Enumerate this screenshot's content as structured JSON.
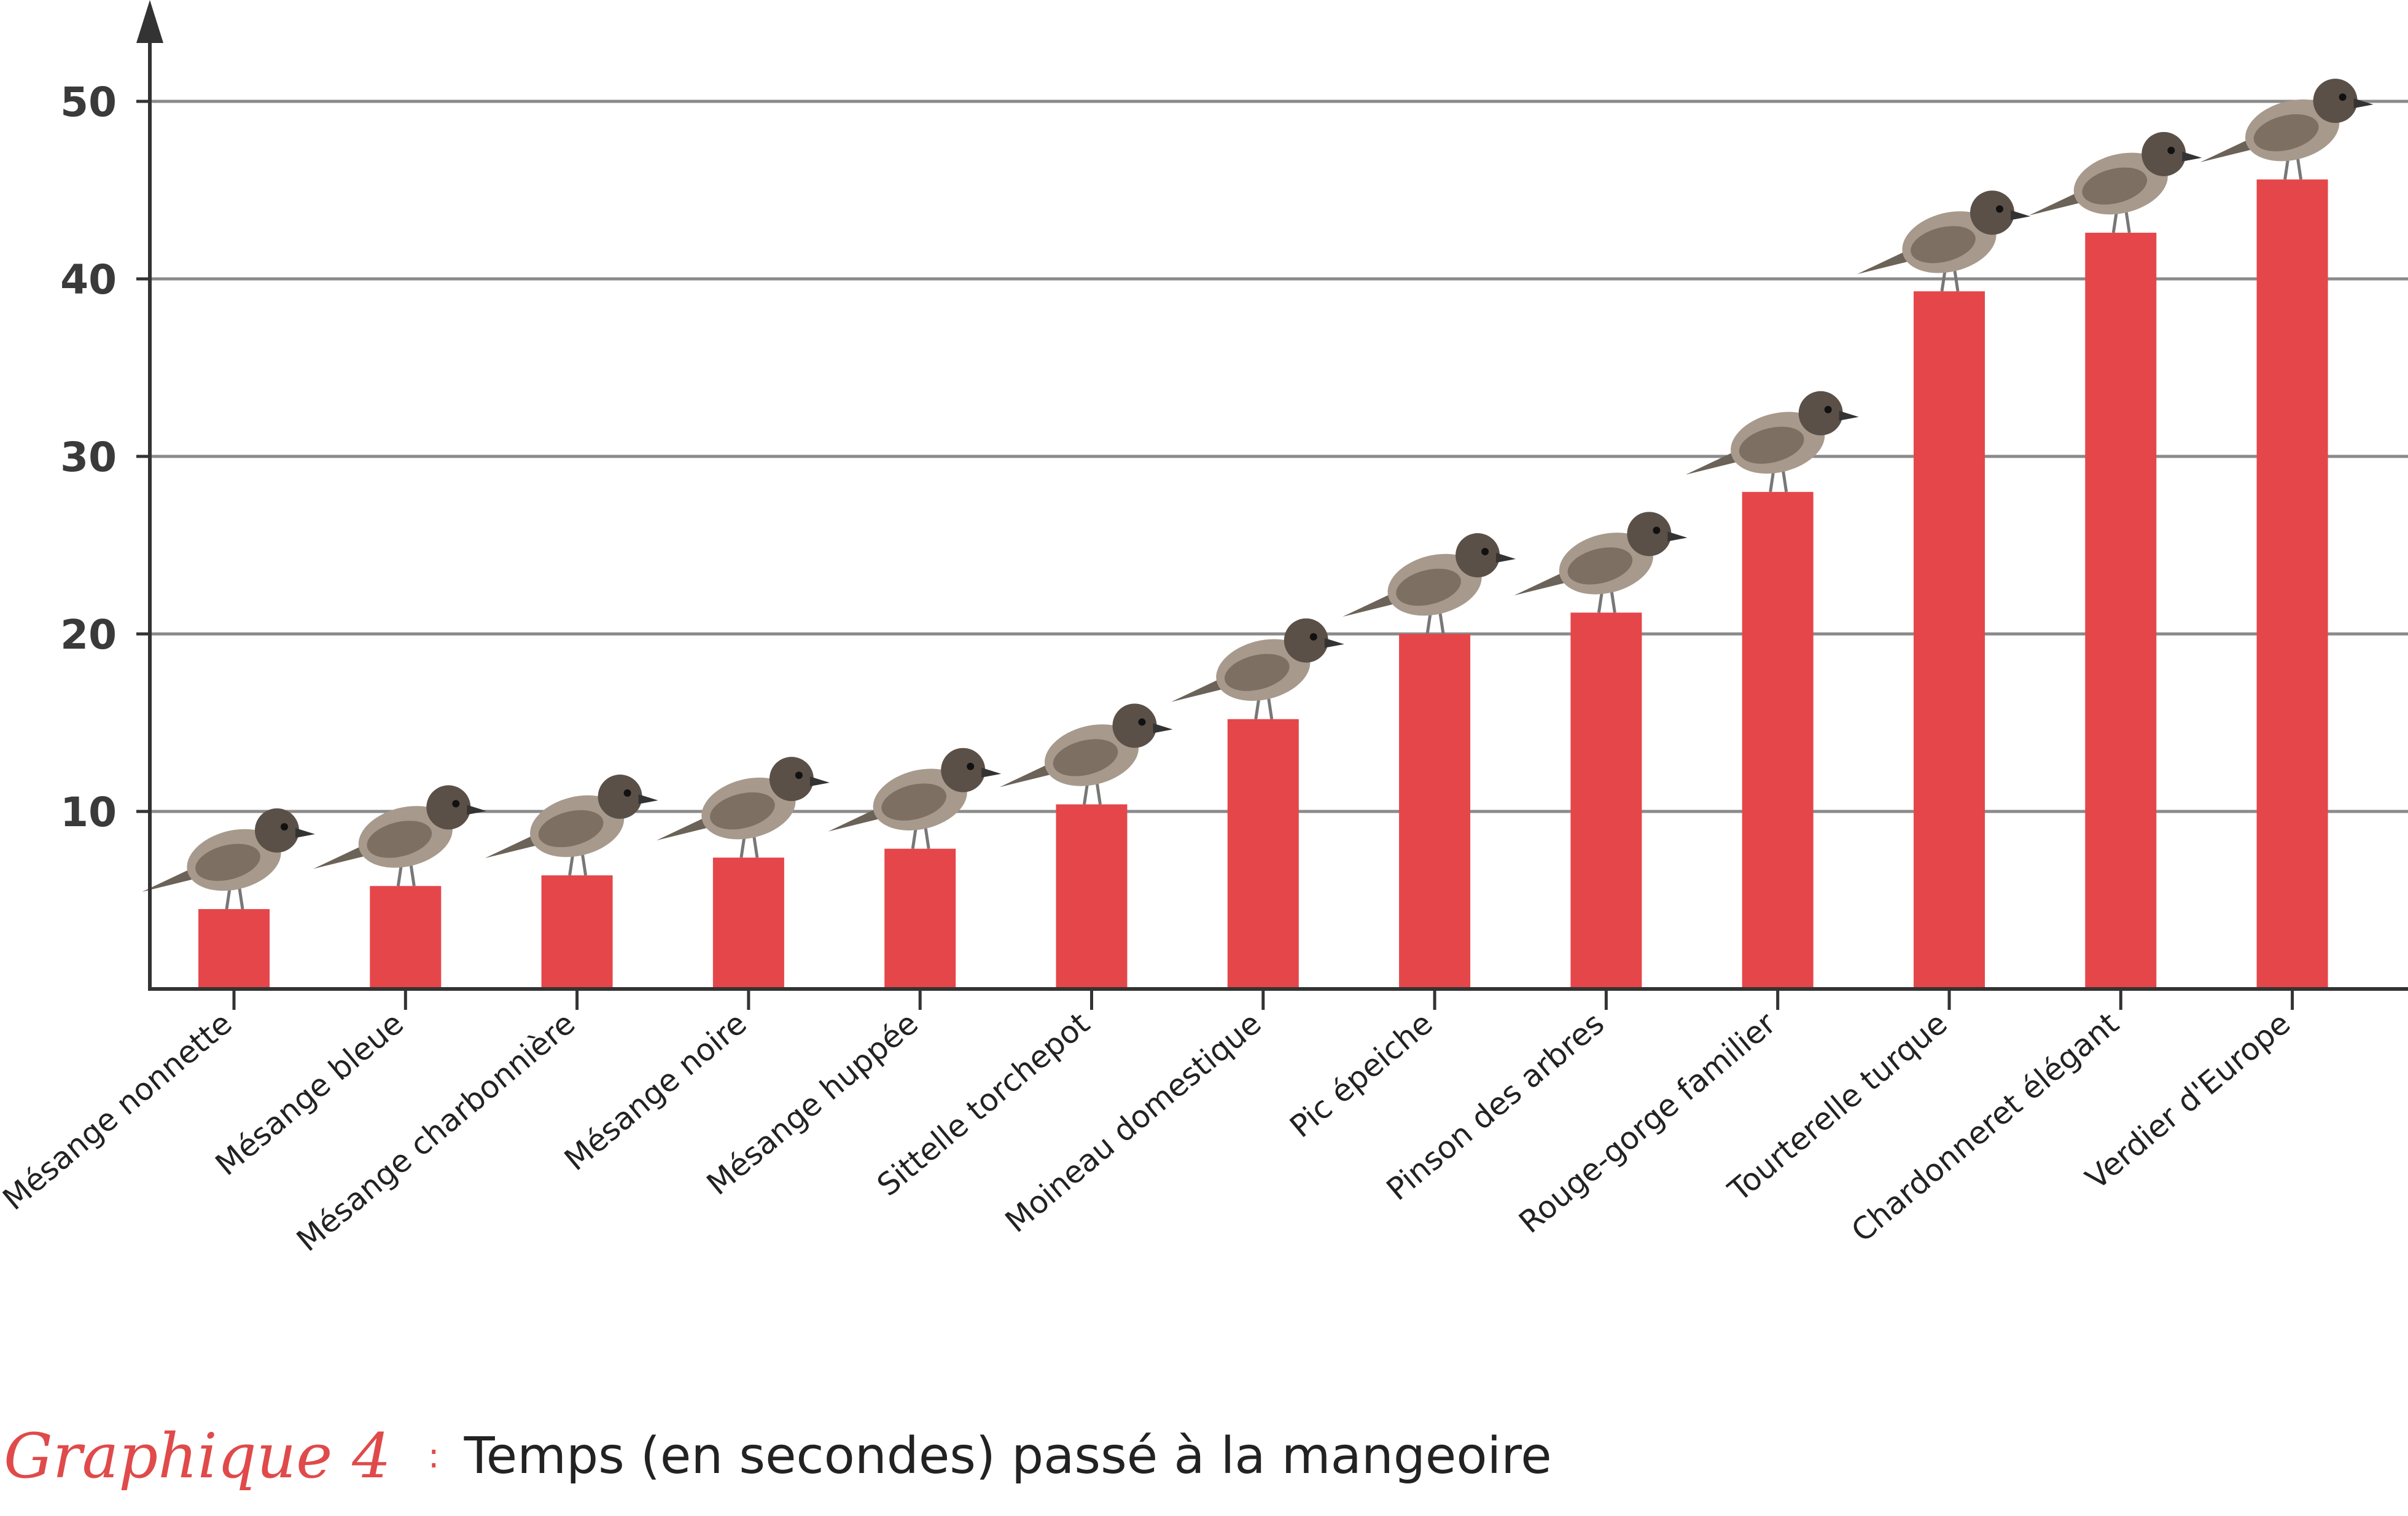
{
  "chart_data": {
    "type": "bar",
    "categories": [
      "Mésange nonnette",
      "Mésange bleue",
      "Mésange charbonnière",
      "Mésange noire",
      "Mésange huppée",
      "Sittelle torchepot",
      "Moineau domestique",
      "Pic épeiche",
      "Pinson des arbres",
      "Rouge-gorge familier",
      "Tourterelle turque",
      "Chardonneret élégant",
      "Verdier d'Europe"
    ],
    "values": [
      4.5,
      5.8,
      6.4,
      7.4,
      7.9,
      10.4,
      15.2,
      20.0,
      21.2,
      28.0,
      39.3,
      42.6,
      45.6
    ],
    "yticks": [
      10,
      20,
      30,
      40,
      50
    ],
    "ylim": [
      0,
      55
    ],
    "grid": true,
    "bar_color": "#e5464a",
    "title": "",
    "xlabel": "",
    "ylabel": ""
  },
  "caption": {
    "tag": "Graphique 4",
    "separator": ":",
    "text": "Temps (en secondes) passé à la mangeoire"
  }
}
